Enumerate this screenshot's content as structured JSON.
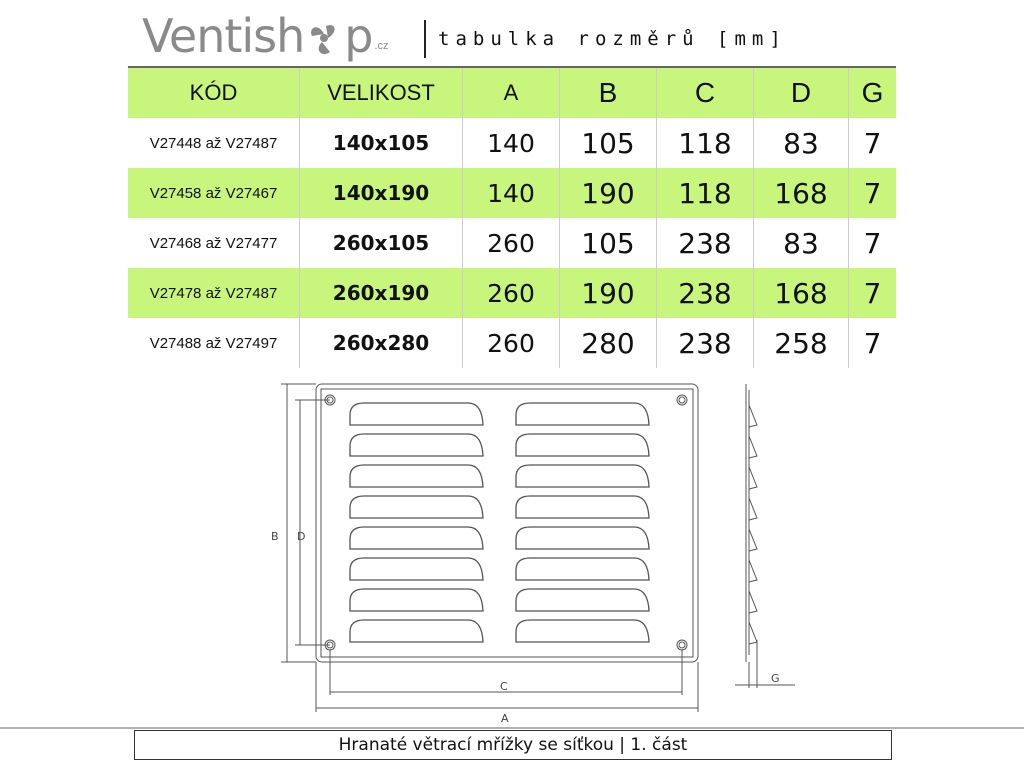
{
  "logo": {
    "name": "Ventishop",
    "text_main": "Ventish",
    "text_tail": "p",
    "domain": ".cz"
  },
  "subtitle": "tabulka rozměrů [mm]",
  "table": {
    "headers": [
      "KÓD",
      "VELIKOST",
      "A",
      "B",
      "C",
      "D",
      "G"
    ],
    "rows": [
      [
        "V27448 až V27487",
        "140x105",
        "140",
        "105",
        "118",
        "83",
        "7"
      ],
      [
        "V27458 až V27467",
        "140x190",
        "140",
        "190",
        "118",
        "168",
        "7"
      ],
      [
        "V27468 až V27477",
        "260x105",
        "260",
        "105",
        "238",
        "83",
        "7"
      ],
      [
        "V27478 až V27487",
        "260x190",
        "260",
        "190",
        "238",
        "168",
        "7"
      ],
      [
        "V27488 až V27497",
        "260x280",
        "260",
        "280",
        "238",
        "258",
        "7"
      ]
    ],
    "highlight_color": "#c8f57c"
  },
  "drawing": {
    "labels": {
      "a": "A",
      "b": "B",
      "c": "C",
      "d": "D",
      "g": "G"
    }
  },
  "footer": "Hranaté větrací mřížky se síťkou | 1. část"
}
